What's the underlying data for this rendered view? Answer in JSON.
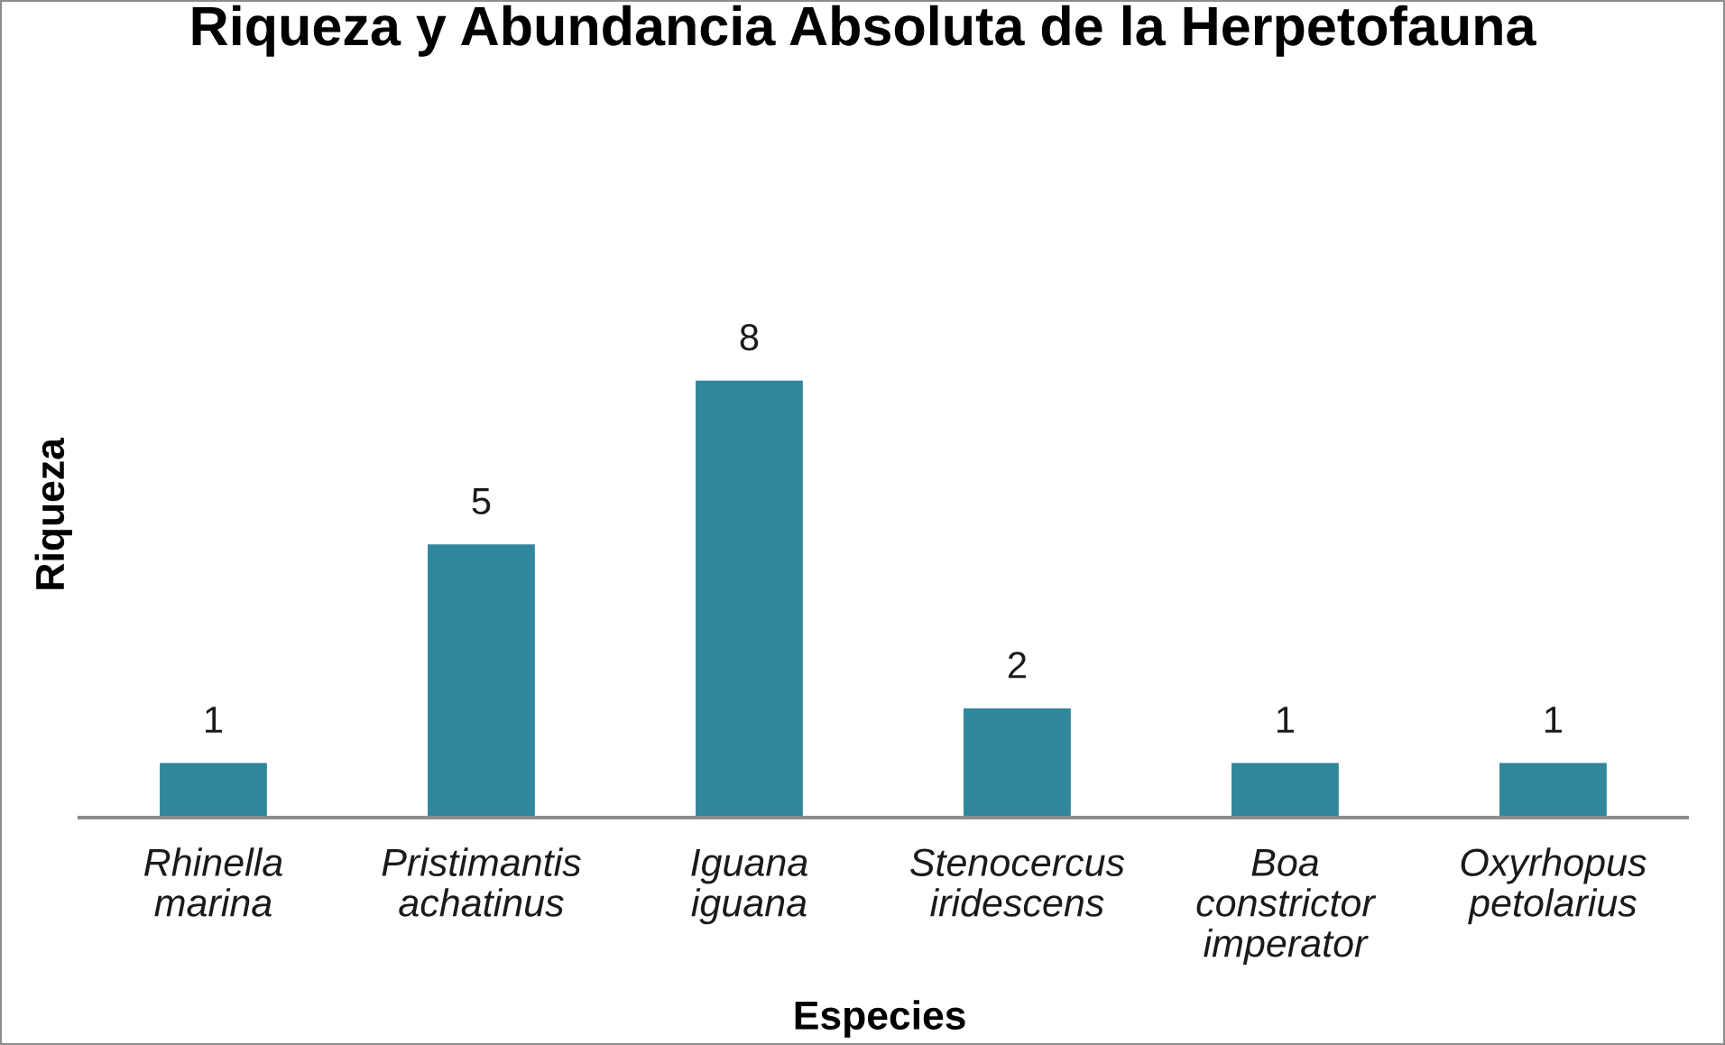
{
  "chart_data": {
    "type": "bar",
    "title": "Riqueza y Abundancia Absoluta de la Herpetofauna",
    "xlabel": "Especies",
    "ylabel": "Riqueza",
    "categories": [
      "Rhinella\nmarina",
      "Pristimantis\nachatinus",
      "Iguana\niguana",
      "Stenocercus\niridescens",
      "Boa\nconstrictor\nimperator",
      "Oxyrhopus\npetolarius"
    ],
    "values": [
      1,
      5,
      8,
      2,
      1,
      1
    ],
    "color": "#31869b",
    "data_labels": true,
    "grid": false,
    "legend": false
  }
}
